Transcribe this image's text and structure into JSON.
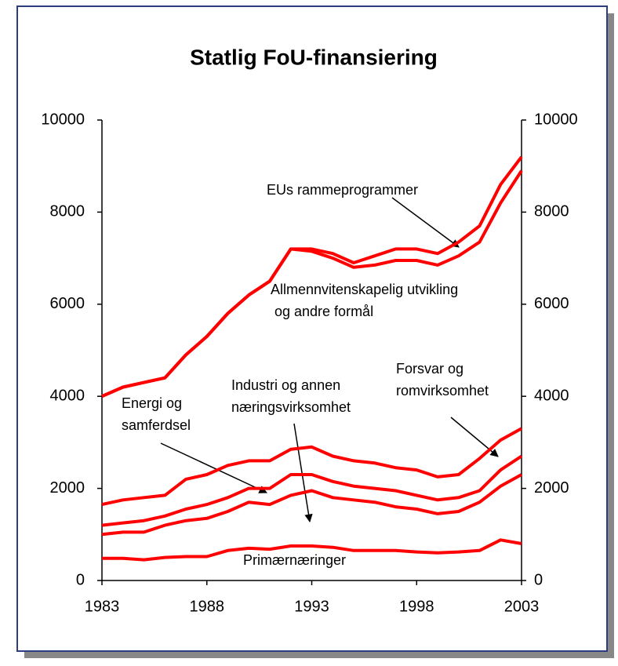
{
  "chart_data": {
    "type": "stacked-line",
    "title": "Statlig FoU-finansiering",
    "x": [
      1983,
      1984,
      1985,
      1986,
      1987,
      1988,
      1989,
      1990,
      1991,
      1992,
      1993,
      1994,
      1995,
      1996,
      1997,
      1998,
      1999,
      2000,
      2001,
      2002,
      2003
    ],
    "xlim": [
      1983,
      2003
    ],
    "xticks": [
      1983,
      1988,
      1993,
      1998,
      2003
    ],
    "ylim": [
      0,
      10000
    ],
    "yticks": [
      0,
      2000,
      4000,
      6000,
      8000,
      10000
    ],
    "y2lim": [
      0,
      10000
    ],
    "y2ticks": [
      0,
      2000,
      4000,
      6000,
      8000,
      10000
    ],
    "grid": false,
    "series": [
      {
        "color": "#ff0000",
        "values": [
          480,
          480,
          450,
          500,
          520,
          520,
          650,
          700,
          680,
          750,
          750,
          720,
          650,
          650,
          650,
          620,
          600,
          620,
          650,
          880,
          800
        ]
      },
      {
        "color": "#ff0000",
        "values": [
          520,
          570,
          600,
          700,
          780,
          830,
          850,
          1000,
          970,
          1100,
          1200,
          1080,
          1100,
          1050,
          950,
          930,
          850,
          880,
          1050,
          1170,
          1500
        ]
      },
      {
        "color": "#ff0000",
        "values": [
          200,
          200,
          250,
          200,
          250,
          300,
          300,
          300,
          350,
          450,
          350,
          350,
          300,
          300,
          350,
          300,
          300,
          300,
          250,
          350,
          400
        ]
      },
      {
        "color": "#ff0000",
        "values": [
          450,
          500,
          500,
          450,
          650,
          650,
          700,
          600,
          600,
          550,
          600,
          550,
          550,
          550,
          500,
          550,
          500,
          500,
          700,
          650,
          600
        ]
      },
      {
        "color": "#ff0000",
        "values": [
          2350,
          2450,
          2500,
          2550,
          2700,
          3000,
          3300,
          3600,
          3900,
          4350,
          4250,
          4300,
          4200,
          4300,
          4500,
          4550,
          4600,
          4750,
          4700,
          5150,
          5600
        ]
      },
      {
        "color": "#ff0000",
        "values": [
          0,
          0,
          0,
          0,
          0,
          0,
          0,
          0,
          0,
          0,
          50,
          100,
          100,
          200,
          250,
          250,
          250,
          300,
          350,
          400,
          300
        ]
      }
    ],
    "annotations": [
      {
        "lines": [
          "EUs rammeprogrammer"
        ]
      },
      {
        "lines": [
          "Allmennvitenskapelig utvikling",
          "og andre formål"
        ]
      },
      {
        "lines": [
          "Energi og",
          "samferdsel"
        ]
      },
      {
        "lines": [
          "Industri og annen",
          "næringsvirksomhet"
        ]
      },
      {
        "lines": [
          "Forsvar og",
          "romvirksomhet"
        ]
      },
      {
        "lines": [
          "Primærnæringer"
        ]
      }
    ]
  }
}
